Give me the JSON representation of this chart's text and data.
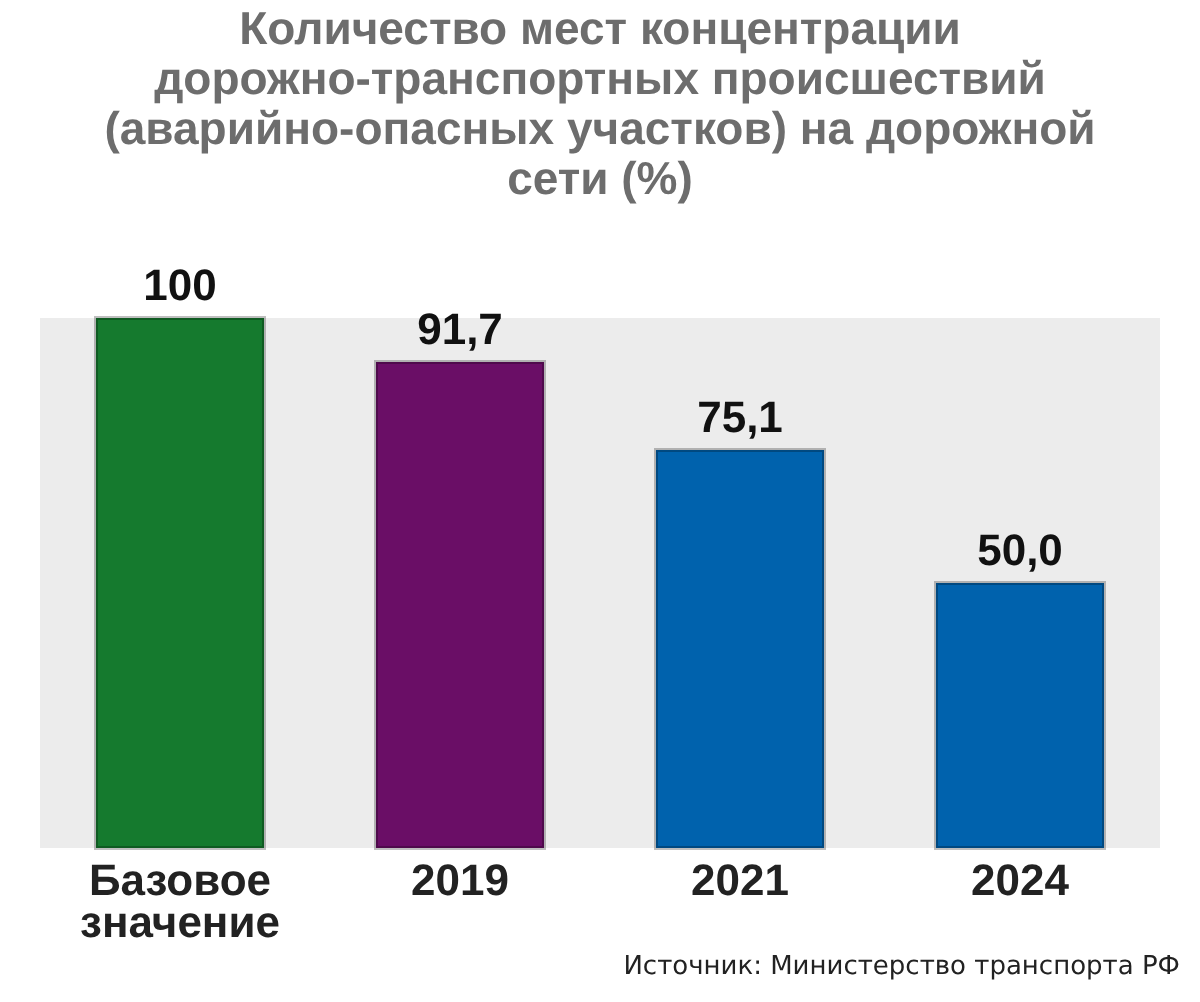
{
  "chart_data": {
    "type": "bar",
    "title": "Количество мест концентрации дорожно-транспортных происшествий (аварийно-опасных участков) на дорожной сети (%)",
    "categories": [
      "Базовое значение",
      "2019",
      "2021",
      "2024"
    ],
    "values": [
      100,
      91.7,
      75.1,
      50.0
    ],
    "value_labels": [
      "100",
      "91,7",
      "75,1",
      "50,0"
    ],
    "colors": [
      "#157a2e",
      "#6a0e66",
      "#0062ad",
      "#0062ad"
    ],
    "annotations": [
      "Источник: Министерство транспорта РФ"
    ]
  }
}
